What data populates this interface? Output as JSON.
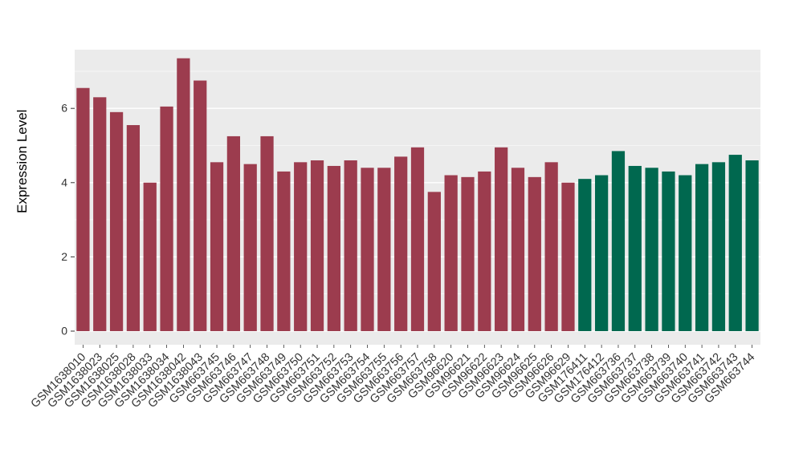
{
  "chart_data": {
    "type": "bar",
    "title": "",
    "xlabel": "",
    "ylabel": "Expression Level",
    "ylim": [
      0,
      7.6
    ],
    "yticks": [
      0,
      2,
      4,
      6
    ],
    "grid": "on",
    "legend": "none",
    "panel_background": "#EBEBEB",
    "grid_color": "#FFFFFF",
    "axis_text_color": "#333333",
    "categories": [
      "GSM1638010",
      "GSM1638023",
      "GSM1638025",
      "GSM1638028",
      "GSM1638033",
      "GSM1638034",
      "GSM1638042",
      "GSM1638043",
      "GSM663745",
      "GSM663746",
      "GSM663747",
      "GSM663748",
      "GSM663749",
      "GSM663750",
      "GSM663751",
      "GSM663752",
      "GSM663753",
      "GSM663754",
      "GSM663755",
      "GSM663756",
      "GSM663757",
      "GSM663758",
      "GSM96620",
      "GSM96621",
      "GSM96622",
      "GSM96623",
      "GSM96624",
      "GSM96625",
      "GSM96626",
      "GSM96629",
      "GSM176411",
      "GSM176412",
      "GSM663736",
      "GSM663737",
      "GSM663738",
      "GSM663739",
      "GSM663740",
      "GSM663741",
      "GSM663742",
      "GSM663743",
      "GSM663744"
    ],
    "values": [
      6.55,
      6.3,
      5.9,
      5.55,
      4.0,
      6.05,
      7.35,
      6.75,
      4.55,
      5.25,
      4.5,
      5.25,
      4.3,
      4.55,
      4.6,
      4.45,
      4.6,
      4.4,
      4.4,
      4.7,
      4.95,
      3.75,
      4.2,
      4.15,
      4.3,
      4.95,
      4.4,
      4.15,
      4.55,
      4.0,
      4.1,
      4.2,
      4.85,
      4.45,
      4.4,
      4.3,
      4.2,
      4.5,
      4.55,
      4.75,
      4.6
    ],
    "bar_color_groups": [
      {
        "color": "#9C3C4E",
        "from": 0,
        "to": 29
      },
      {
        "color": "#00684F",
        "from": 30,
        "to": 40
      }
    ]
  }
}
